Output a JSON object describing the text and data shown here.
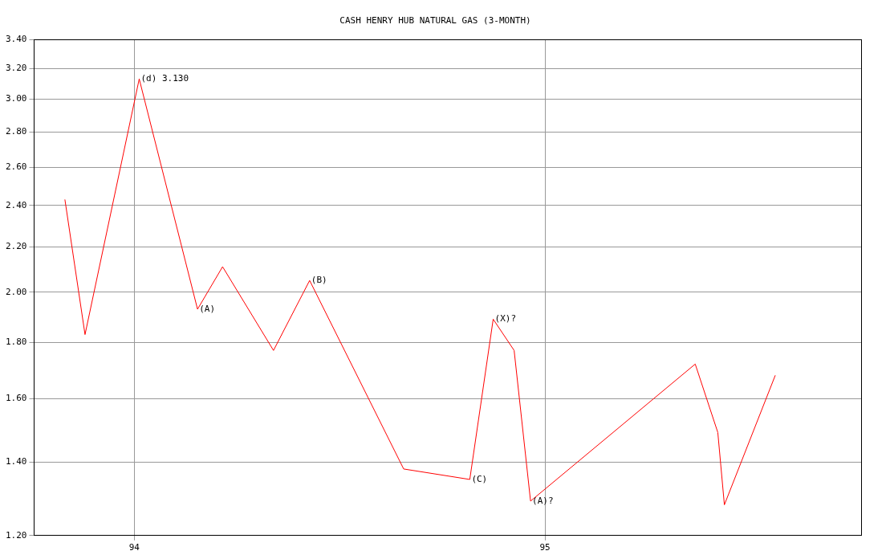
{
  "chart_data": {
    "type": "line",
    "title": "CASH HENRY HUB NATURAL GAS (3-MONTH)",
    "x": [
      1993.831,
      1993.88,
      1994.012,
      1994.154,
      1994.215,
      1994.339,
      1994.427,
      1994.656,
      1994.817,
      1994.874,
      1994.925,
      1994.965,
      1995.366,
      1995.421,
      1995.437,
      1995.561
    ],
    "series": [
      {
        "color": "#ff0000",
        "values": [
          2.43,
          1.83,
          3.13,
          1.93,
          2.11,
          1.77,
          2.05,
          1.38,
          1.35,
          1.89,
          1.77,
          1.29,
          1.72,
          1.49,
          1.28,
          1.68
        ]
      }
    ],
    "xlim": [
      1993.756,
      1995.77
    ],
    "xticks": [
      {
        "value": 1994,
        "label": "94"
      },
      {
        "value": 1995,
        "label": "95"
      }
    ],
    "ylim": [
      1.2,
      3.4
    ],
    "yticks": [
      {
        "value": 1.2,
        "label": "1.20"
      },
      {
        "value": 1.4,
        "label": "1.40"
      },
      {
        "value": 1.6,
        "label": "1.60"
      },
      {
        "value": 1.8,
        "label": "1.80"
      },
      {
        "value": 2.0,
        "label": "2.00"
      },
      {
        "value": 2.2,
        "label": "2.20"
      },
      {
        "value": 2.4,
        "label": "2.40"
      },
      {
        "value": 2.6,
        "label": "2.60"
      },
      {
        "value": 2.8,
        "label": "2.80"
      },
      {
        "value": 3.0,
        "label": "3.00"
      },
      {
        "value": 3.2,
        "label": "3.20"
      },
      {
        "value": 3.4,
        "label": "3.40"
      }
    ],
    "log": "y",
    "grid": true,
    "legend": false,
    "marker": "none",
    "line_style": "solid",
    "annotations": [
      {
        "text": "(d) 3.130",
        "x": 1994.012,
        "y": 3.13
      },
      {
        "text": "(A)",
        "x": 1994.154,
        "y": 1.93
      },
      {
        "text": "(B)",
        "x": 1994.427,
        "y": 2.05
      },
      {
        "text": "(C)",
        "x": 1994.817,
        "y": 1.35
      },
      {
        "text": "(X)?",
        "x": 1994.874,
        "y": 1.89
      },
      {
        "text": "(A)?",
        "x": 1994.965,
        "y": 1.29
      }
    ]
  }
}
